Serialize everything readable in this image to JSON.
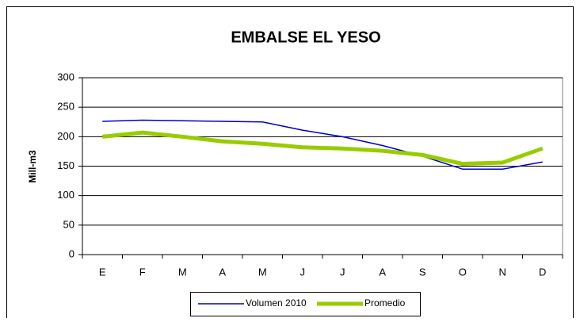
{
  "chart_data": {
    "type": "line",
    "title": "EMBALSE EL YESO",
    "y_label": "Mill-m3",
    "categories": [
      "E",
      "F",
      "M",
      "A",
      "M",
      "J",
      "J",
      "A",
      "S",
      "O",
      "N",
      "D"
    ],
    "series": [
      {
        "name": "Volumen 2010",
        "color": "#0000cc",
        "values": [
          226,
          228,
          227,
          226,
          225,
          211,
          200,
          185,
          167,
          145,
          145,
          157
        ]
      },
      {
        "name": "Promedio",
        "color": "#99cc00",
        "values": [
          200,
          207,
          200,
          192,
          188,
          182,
          180,
          176,
          169,
          154,
          156,
          180
        ]
      }
    ],
    "ylim": [
      0,
      300
    ],
    "yticks": [
      0,
      50,
      100,
      150,
      200,
      250,
      300
    ],
    "grid": true,
    "legend": "bottom"
  }
}
